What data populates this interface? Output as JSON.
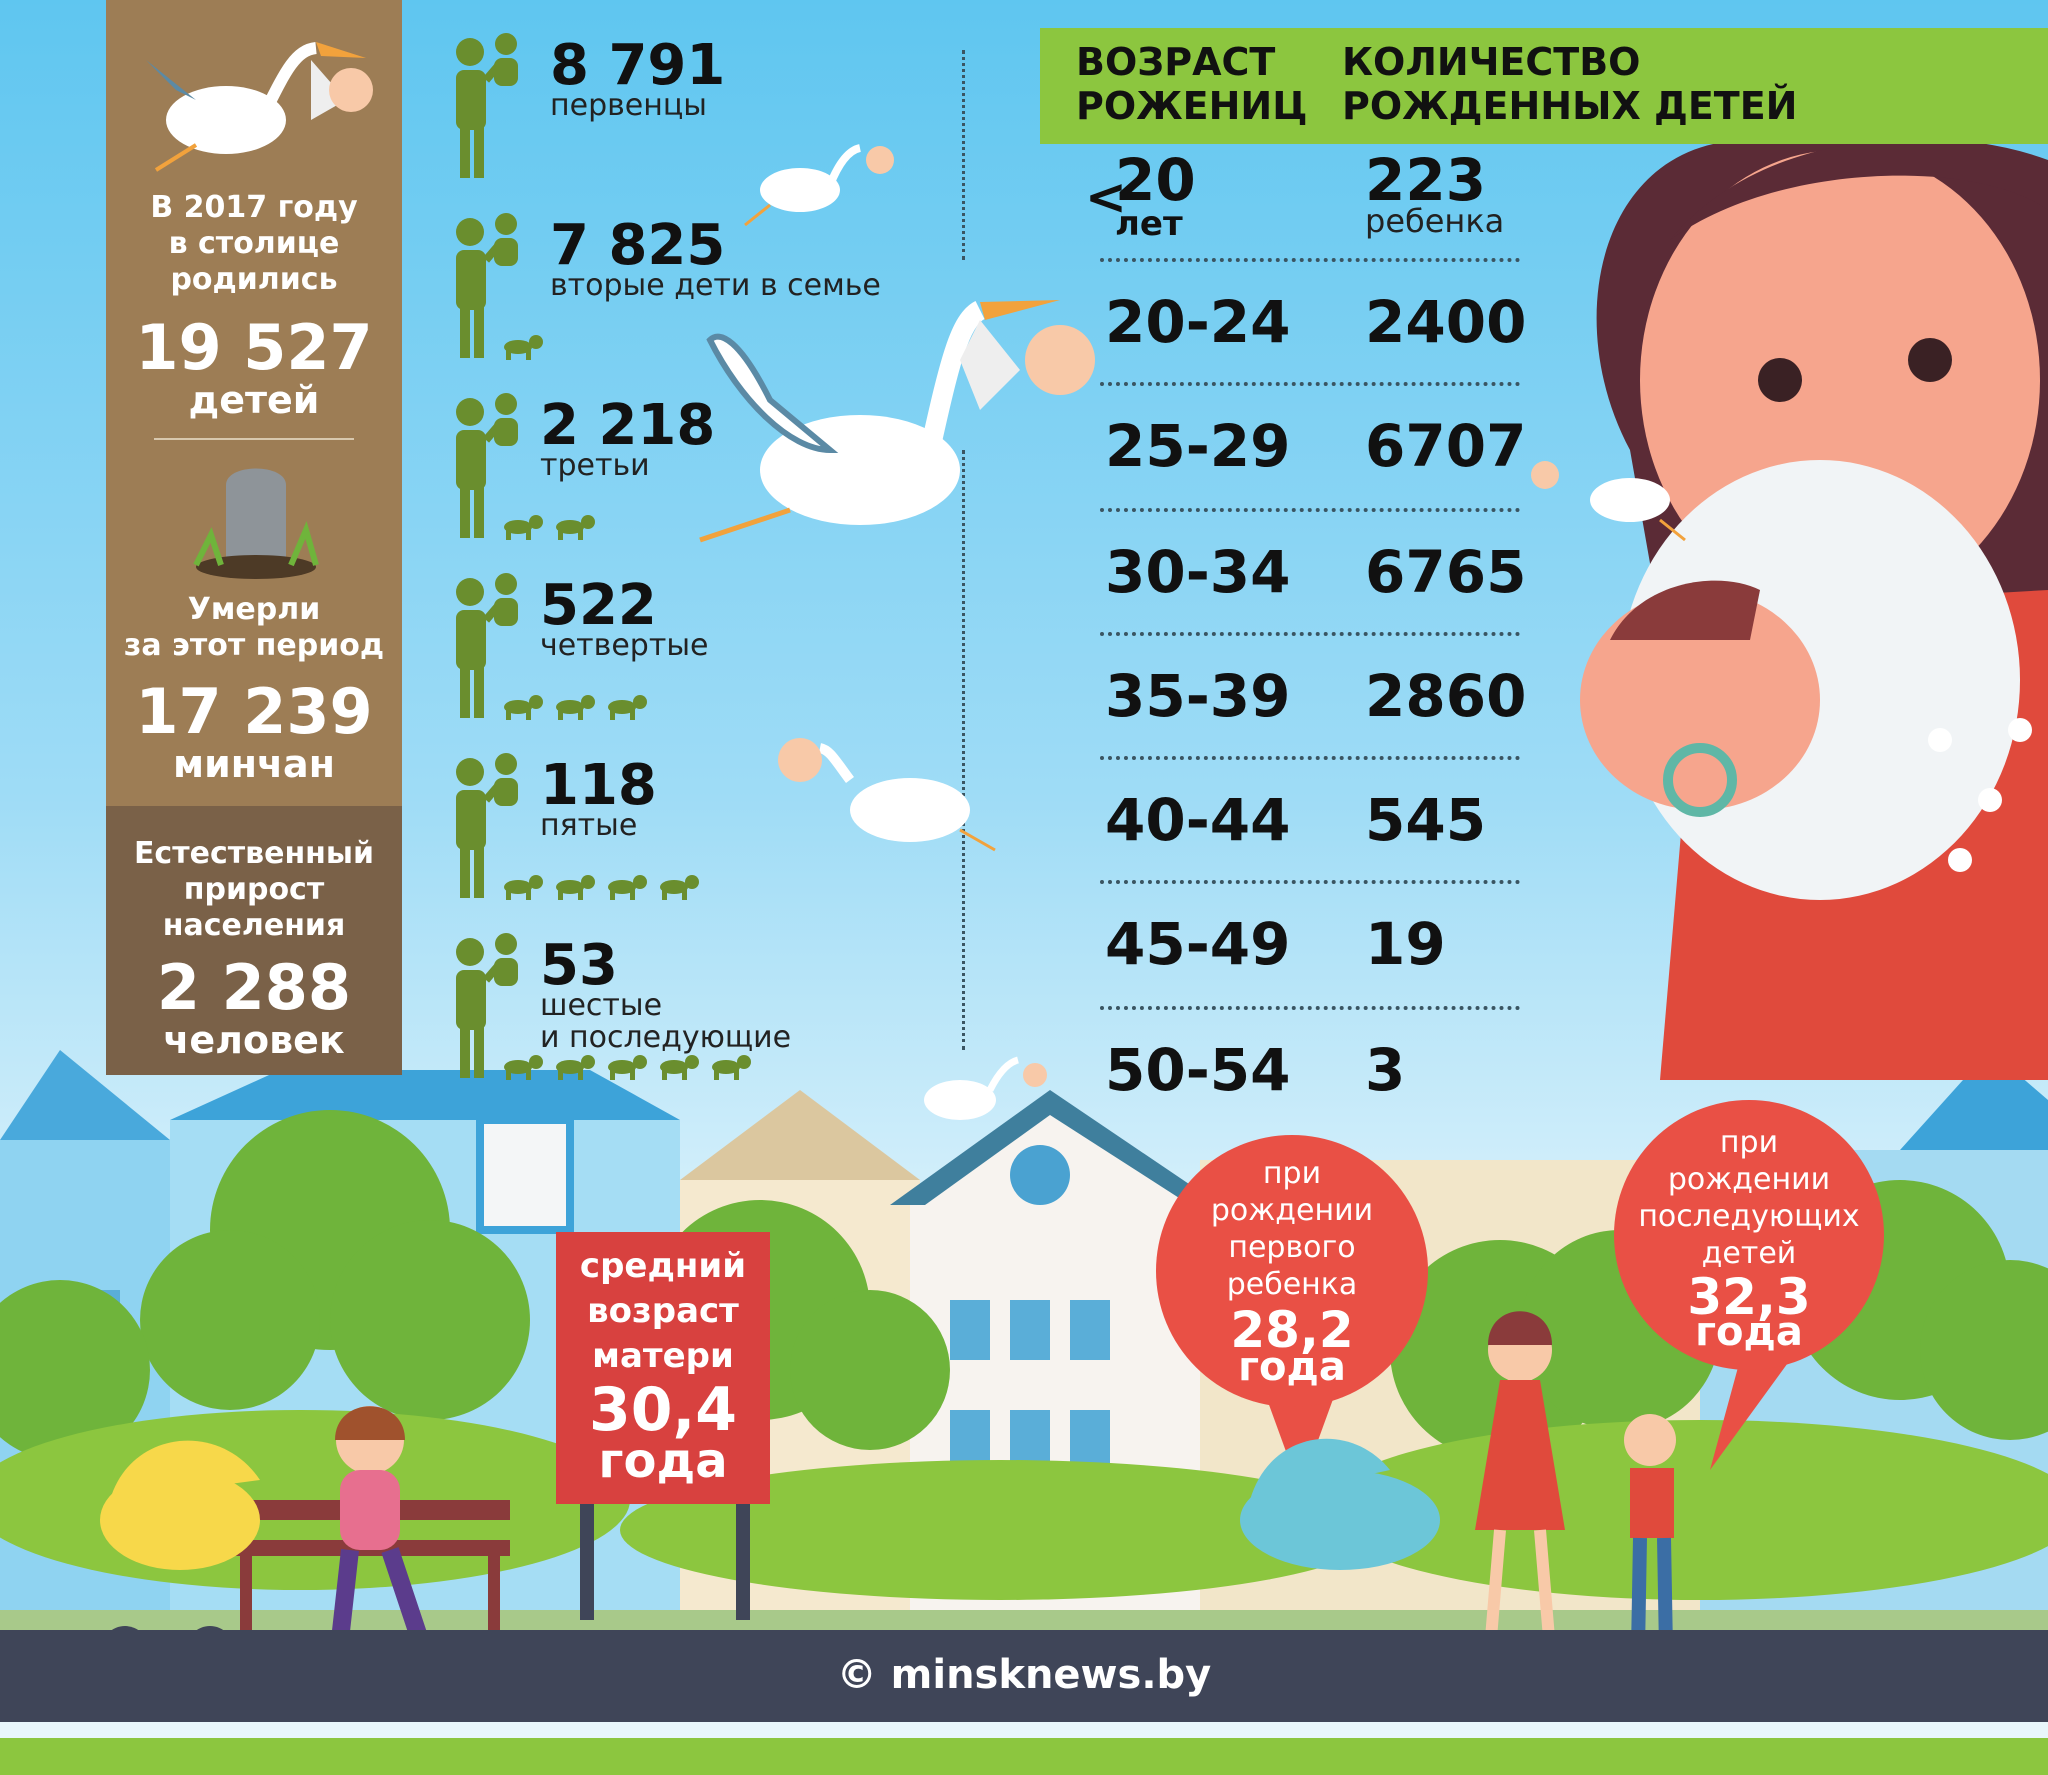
{
  "summary": {
    "births_intro": "В 2017 году\nв столице\nродились",
    "births_value": "19 527",
    "births_unit": "детей",
    "deaths_intro": "Умерли\nза этот период",
    "deaths_value": "17 239",
    "deaths_unit": "минчан",
    "growth_intro": "Естественный\nприрост\nнаселения",
    "growth_value": "2 288",
    "growth_unit": "человек"
  },
  "birth_order": [
    {
      "value": "8 791",
      "label": "первенцы",
      "kids": 0
    },
    {
      "value": "7 825",
      "label": "вторые дети в семье",
      "kids": 1
    },
    {
      "value": "2 218",
      "label": "третьи",
      "kids": 2
    },
    {
      "value": "522",
      "label": "четвертые",
      "kids": 3
    },
    {
      "value": "118",
      "label": "пятые",
      "kids": 4
    },
    {
      "value": "53",
      "label": "шестые\nи последующие",
      "kids": 5
    }
  ],
  "table": {
    "col1_header": "ВОЗРАСТ\nРОЖЕНИЦ",
    "col2_header": "КОЛИЧЕСТВО\nРОЖДЕННЫХ ДЕТЕЙ",
    "first_age_prefix": "<",
    "first_age_value": "20",
    "first_age_unit": "лет",
    "first_count_value": "223",
    "first_count_unit": "ребенка",
    "rows": [
      {
        "age": "20-24",
        "count": "2400"
      },
      {
        "age": "25-29",
        "count": "6707"
      },
      {
        "age": "30-34",
        "count": "6765"
      },
      {
        "age": "35-39",
        "count": "2860"
      },
      {
        "age": "40-44",
        "count": "545"
      },
      {
        "age": "45-49",
        "count": "19"
      },
      {
        "age": "50-54",
        "count": "3"
      }
    ]
  },
  "avg_age": {
    "label": "средний\nвозраст\nматери",
    "value": "30,4",
    "unit": "года"
  },
  "first_child_bubble": {
    "label": "при\nрождении\nпервого\nребенка",
    "value": "28,2",
    "unit": "года"
  },
  "later_child_bubble": {
    "label": "при\nрождении\nпоследующих\nдетей",
    "value": "32,3",
    "unit": "года"
  },
  "credit": "© minsknews.by",
  "colors": {
    "brown": "#9d7d55",
    "dark_brown": "#7a6148",
    "green": "#8cc63f",
    "figure_green": "#6a8e2e",
    "red": "#e95045",
    "road": "#3f4558"
  }
}
